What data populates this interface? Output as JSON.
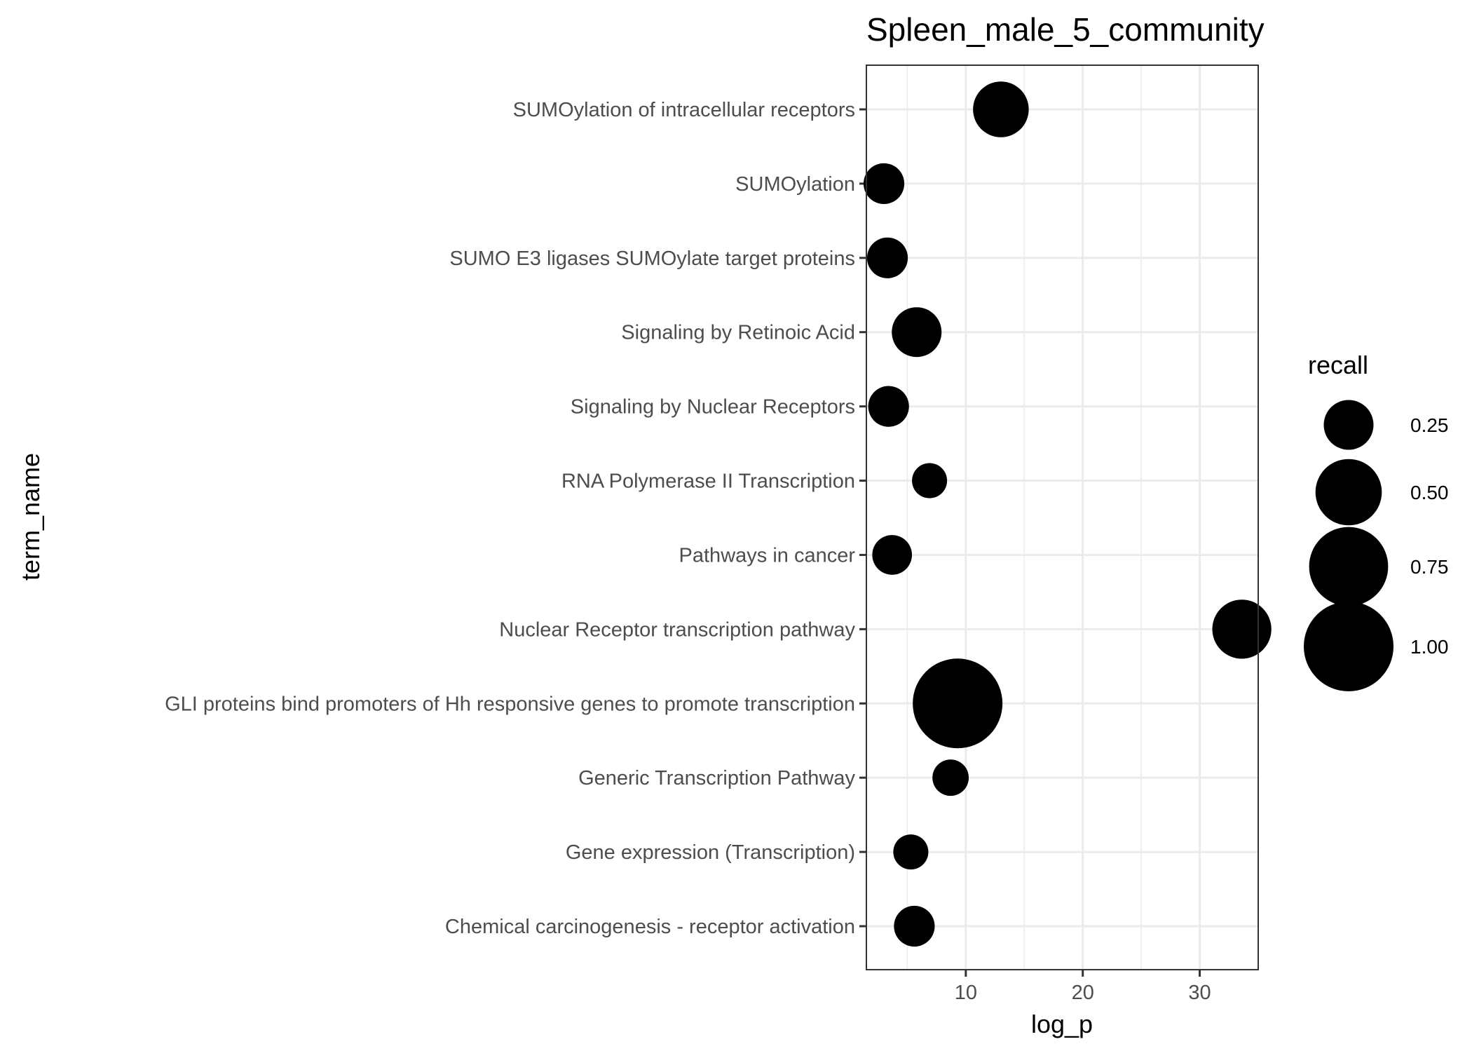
{
  "chart_data": {
    "type": "scatter",
    "title": "Spleen_male_5_community",
    "xlabel": "log_p",
    "ylabel": "term_name",
    "xlim": [
      1.5,
      35
    ],
    "x_ticks": [
      10,
      20,
      30
    ],
    "grid": true,
    "legend": {
      "title": "recall",
      "position": "right",
      "entries": [
        {
          "label": "0.25",
          "value": 0.25
        },
        {
          "label": "0.50",
          "value": 0.5
        },
        {
          "label": "0.75",
          "value": 0.75
        },
        {
          "label": "1.00",
          "value": 1.0
        }
      ]
    },
    "categories": [
      "SUMOylation of intracellular receptors",
      "SUMOylation",
      "SUMO E3 ligases SUMOylate target proteins",
      "Signaling by Retinoic Acid",
      "Signaling by Nuclear Receptors",
      "RNA Polymerase II Transcription",
      "Pathways in cancer",
      "Nuclear Receptor transcription pathway",
      "GLI proteins bind promoters of Hh responsive genes to promote transcription",
      "Generic Transcription Pathway",
      "Gene expression (Transcription)",
      "Chemical carcinogenesis - receptor activation"
    ],
    "points": [
      {
        "term": "SUMOylation of intracellular receptors",
        "log_p": 13.0,
        "recall": 0.33
      },
      {
        "term": "SUMOylation",
        "log_p": 3.0,
        "recall": 0.15
      },
      {
        "term": "SUMO E3 ligases SUMOylate target proteins",
        "log_p": 3.3,
        "recall": 0.15
      },
      {
        "term": "Signaling by Retinoic Acid",
        "log_p": 5.8,
        "recall": 0.25
      },
      {
        "term": "Signaling by Nuclear Receptors",
        "log_p": 3.4,
        "recall": 0.15
      },
      {
        "term": "RNA Polymerase II Transcription",
        "log_p": 6.9,
        "recall": 0.1
      },
      {
        "term": "Pathways in cancer",
        "log_p": 3.7,
        "recall": 0.14
      },
      {
        "term": "Nuclear Receptor transcription pathway",
        "log_p": 33.6,
        "recall": 0.38
      },
      {
        "term": "GLI proteins bind promoters of Hh responsive genes to promote transcription",
        "log_p": 9.3,
        "recall": 1.0
      },
      {
        "term": "Generic Transcription Pathway",
        "log_p": 8.7,
        "recall": 0.11
      },
      {
        "term": "Gene expression (Transcription)",
        "log_p": 5.3,
        "recall": 0.1
      },
      {
        "term": "Chemical carcinogenesis - receptor activation",
        "log_p": 5.6,
        "recall": 0.15
      }
    ],
    "marker_color": "#000000",
    "panel_border_color": "#333333",
    "grid_color": "#ebebeb"
  }
}
